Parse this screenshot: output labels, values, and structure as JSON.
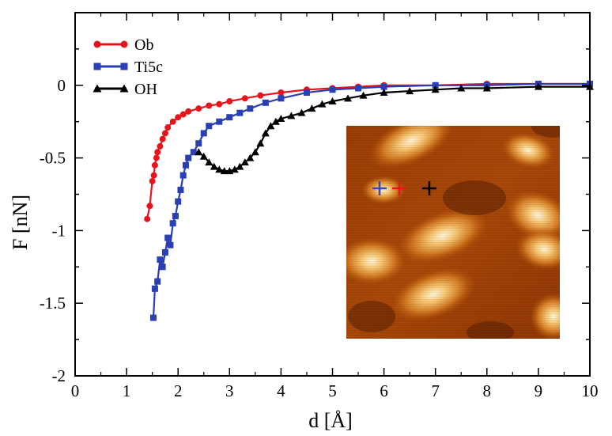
{
  "chart_data": {
    "type": "line",
    "title": "",
    "xlabel": "d [Å]",
    "ylabel": "F [nN]",
    "xlim": [
      0,
      10
    ],
    "ylim": [
      -2,
      0.5
    ],
    "xticks": [
      0,
      1,
      2,
      3,
      4,
      5,
      6,
      7,
      8,
      9,
      10
    ],
    "yticks": [
      0,
      -0.5,
      -1,
      -1.5,
      -2
    ],
    "grid": false,
    "legend_position": "top-left",
    "series": [
      {
        "name": "Ob",
        "color": "#e8141c",
        "marker": "circle",
        "x": [
          1.4,
          1.45,
          1.5,
          1.53,
          1.55,
          1.58,
          1.6,
          1.65,
          1.7,
          1.75,
          1.8,
          1.9,
          2.0,
          2.1,
          2.2,
          2.4,
          2.6,
          2.8,
          3.0,
          3.3,
          3.6,
          4.0,
          4.5,
          5.0,
          5.5,
          6.0,
          7.0,
          8.0,
          9.0,
          10.0
        ],
        "y": [
          -0.92,
          -0.83,
          -0.66,
          -0.62,
          -0.55,
          -0.5,
          -0.46,
          -0.42,
          -0.37,
          -0.33,
          -0.29,
          -0.25,
          -0.22,
          -0.2,
          -0.18,
          -0.16,
          -0.14,
          -0.13,
          -0.11,
          -0.09,
          -0.07,
          -0.05,
          -0.03,
          -0.02,
          -0.01,
          0.0,
          0.0,
          0.01,
          0.01,
          0.01
        ]
      },
      {
        "name": "Ti5c",
        "color": "#2b3fb4",
        "marker": "square",
        "x": [
          1.52,
          1.55,
          1.6,
          1.65,
          1.7,
          1.75,
          1.8,
          1.85,
          1.9,
          1.95,
          2.0,
          2.05,
          2.1,
          2.15,
          2.2,
          2.3,
          2.4,
          2.5,
          2.6,
          2.8,
          3.0,
          3.2,
          3.4,
          3.7,
          4.0,
          4.5,
          5.0,
          5.5,
          6.0,
          7.0,
          8.0,
          9.0,
          10.0
        ],
        "y": [
          -1.6,
          -1.4,
          -1.35,
          -1.2,
          -1.25,
          -1.15,
          -1.05,
          -1.1,
          -0.95,
          -0.9,
          -0.8,
          -0.72,
          -0.62,
          -0.55,
          -0.5,
          -0.46,
          -0.4,
          -0.33,
          -0.28,
          -0.25,
          -0.22,
          -0.19,
          -0.16,
          -0.12,
          -0.09,
          -0.05,
          -0.03,
          -0.02,
          -0.01,
          0.0,
          0.0,
          0.01,
          0.01
        ]
      },
      {
        "name": "OH",
        "color": "#000000",
        "marker": "triangle",
        "x": [
          2.4,
          2.5,
          2.6,
          2.7,
          2.8,
          2.9,
          3.0,
          3.1,
          3.2,
          3.3,
          3.4,
          3.5,
          3.6,
          3.7,
          3.8,
          3.9,
          4.0,
          4.2,
          4.4,
          4.6,
          4.8,
          5.0,
          5.3,
          5.6,
          6.0,
          6.5,
          7.0,
          7.5,
          8.0,
          9.0,
          10.0
        ],
        "y": [
          -0.46,
          -0.49,
          -0.53,
          -0.56,
          -0.58,
          -0.59,
          -0.59,
          -0.58,
          -0.56,
          -0.53,
          -0.5,
          -0.46,
          -0.4,
          -0.33,
          -0.28,
          -0.25,
          -0.23,
          -0.21,
          -0.19,
          -0.16,
          -0.13,
          -0.11,
          -0.09,
          -0.07,
          -0.05,
          -0.04,
          -0.03,
          -0.02,
          -0.02,
          -0.01,
          -0.01
        ]
      }
    ],
    "inset": {
      "type": "image",
      "colormap": [
        "#3a1200",
        "#7a2c00",
        "#c2600f",
        "#eea24b",
        "#fff0c9"
      ],
      "markers": [
        {
          "color": "#3a48b8",
          "symbol": "+"
        },
        {
          "color": "#e8141c",
          "symbol": "+"
        },
        {
          "color": "#000000",
          "symbol": "+"
        }
      ]
    }
  }
}
